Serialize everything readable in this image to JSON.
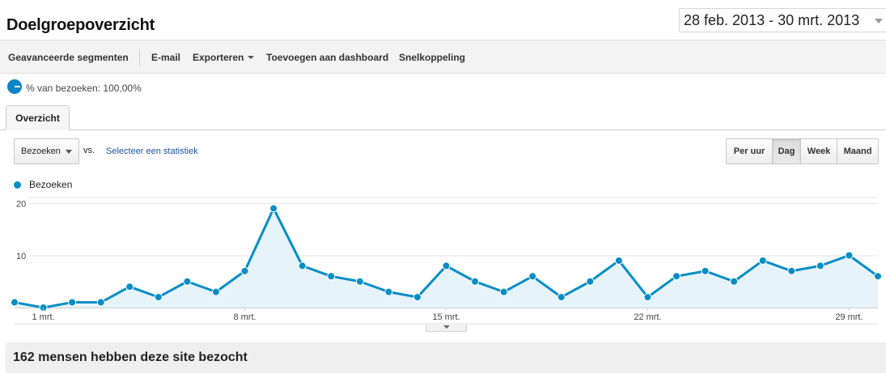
{
  "header": {
    "title": "Doelgroepoverzicht",
    "date_range": "28 feb. 2013 - 30 mrt. 2013"
  },
  "toolbar": {
    "advanced_segments": "Geavanceerde segmenten",
    "email": "E-mail",
    "export": "Exporteren",
    "add_to_dashboard": "Toevoegen aan dashboard",
    "shortcut": "Snelkoppeling"
  },
  "segment": {
    "label": "% van bezoeken: 100,00%",
    "color": "#0c84c6"
  },
  "tabs": {
    "overview": "Overzicht"
  },
  "controls": {
    "metric": "Bezoeken",
    "vs": "vs.",
    "compare_link": "Selecteer een statistiek",
    "granularity": [
      {
        "label": "Per uur",
        "active": false
      },
      {
        "label": "Dag",
        "active": true
      },
      {
        "label": "Week",
        "active": false
      },
      {
        "label": "Maand",
        "active": false
      }
    ]
  },
  "chart_data": {
    "type": "area",
    "series": [
      {
        "name": "Bezoeken",
        "color": "#058dc7",
        "values": [
          1,
          0,
          1,
          1,
          4,
          2,
          5,
          3,
          7,
          19,
          8,
          6,
          5,
          3,
          2,
          8,
          5,
          3,
          6,
          2,
          5,
          9,
          2,
          6,
          7,
          5,
          9,
          7,
          8,
          10,
          6
        ]
      }
    ],
    "x_start": "28 feb. 2013",
    "x_end": "30 mrt. 2013",
    "x_tick_labels": [
      {
        "label": "1 mrt.",
        "index": 1
      },
      {
        "label": "8 mrt.",
        "index": 8
      },
      {
        "label": "15 mrt.",
        "index": 15
      },
      {
        "label": "22 mrt.",
        "index": 22
      },
      {
        "label": "29 mrt.",
        "index": 29
      }
    ],
    "y_ticks": [
      10,
      20
    ],
    "ylim": [
      0,
      20
    ],
    "grid": true,
    "legend": "top-left"
  },
  "summary": {
    "text": "162 mensen hebben deze site bezocht"
  }
}
